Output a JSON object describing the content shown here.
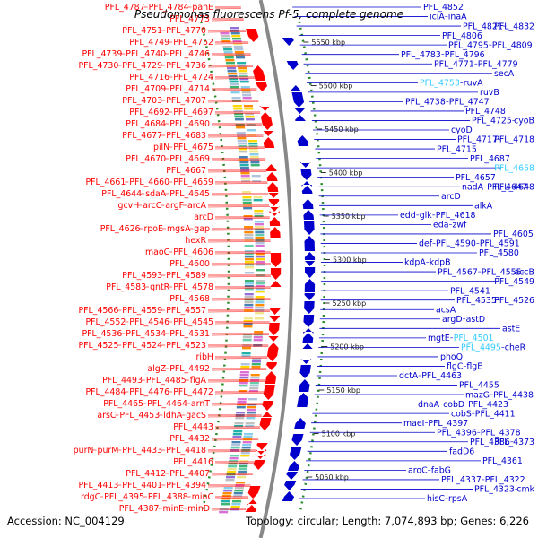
{
  "title": "Pseudomonas fluorescens Pf-5, complete genome",
  "footer": {
    "accession": "Accession: NC_004129",
    "summary": "Topology: circular; Length: 7,074,893 bp; Genes: 6,226"
  },
  "colors": {
    "forward": "#ff0000",
    "reverse": "#0000cc",
    "highlight": "#33ccff",
    "backbone": "#888888",
    "gc": "#2a8a2a"
  },
  "kbp_ticks": [
    "5550 kbp",
    "5500 kbp",
    "5450 kbp",
    "5400 kbp",
    "5350 kbp",
    "5300 kbp",
    "5250 kbp",
    "5200 kbp",
    "5150 kbp",
    "5100 kbp",
    "5050 kbp"
  ],
  "left_labels": [
    [
      "PFL_4787",
      "PFL_4784",
      "panE"
    ],
    [
      "PFL_4773"
    ],
    [
      "PFL_4751",
      "PFL_4770"
    ],
    [
      "PFL_4749",
      "PFL_4752"
    ],
    [
      "PFL_4739",
      "PFL_4740",
      "PFL_4746"
    ],
    [
      "PFL_4730",
      "PFL_4729",
      "PFL_4736"
    ],
    [
      "PFL_4716",
      "PFL_4724"
    ],
    [
      "PFL_4709",
      "PFL_4714"
    ],
    [
      "PFL_4703",
      "PFL_4707"
    ],
    [
      "PFL_4692",
      "PFL_4697"
    ],
    [
      "PFL_4684",
      "PFL_4690"
    ],
    [
      "PFL_4677",
      "PFL_4683"
    ],
    [
      "pilN",
      "PFL_4675"
    ],
    [
      "PFL_4670",
      "PFL_4669"
    ],
    [
      "PFL_4667"
    ],
    [
      "PFL_4661",
      "PFL_4660",
      "PFL_4659"
    ],
    [
      "PFL_4644",
      "sdaA",
      "PFL_4645"
    ],
    [
      "gcvH",
      "arcC",
      "argF",
      "arcA"
    ],
    [
      "arcD"
    ],
    [
      "PFL_4626",
      "rpoE",
      "mgsA",
      "gap"
    ],
    [
      "hexR"
    ],
    [
      "maoC",
      "PFL_4606"
    ],
    [
      "PFL_4600"
    ],
    [
      "PFL_4593",
      "PFL_4589"
    ],
    [
      "PFL_4583",
      "gntR",
      "PFL_4578"
    ],
    [
      "PFL_4568"
    ],
    [
      "PFL_4566",
      "PFL_4559",
      "PFL_4557"
    ],
    [
      "PFL_4552",
      "PFL_4546",
      "PFL_4545"
    ],
    [
      "PFL_4536",
      "PFL_4534",
      "PFL_4531"
    ],
    [
      "PFL_4525",
      "PFL_4524",
      "PFL_4523"
    ],
    [
      "ribH"
    ],
    [
      "algZ",
      "PFL_4492"
    ],
    [
      "PFL_4493",
      "PFL_4485",
      "flgA"
    ],
    [
      "PFL_4484",
      "PFL_4476",
      "PFL_4472"
    ],
    [
      "PFL_4465",
      "PFL_4464",
      "arnT"
    ],
    [
      "arsC",
      "PFL_4453",
      "ldhA",
      "gacS"
    ],
    [
      "PFL_4443"
    ],
    [
      "PFL_4432"
    ],
    [
      "purN",
      "purM",
      "PFL_4433",
      "PFL_4418"
    ],
    [
      "PFL_4416"
    ],
    [
      "PFL_4412",
      "PFL_4407"
    ],
    [
      "PFL_4413",
      "PFL_4401",
      "PFL_4394"
    ],
    [
      "rdgC",
      "PFL_4395",
      "PFL_4388",
      "minC"
    ],
    [
      "PFL_4387",
      "minE",
      "minD"
    ]
  ],
  "right_labels": [
    [
      "PFL_4852"
    ],
    [
      "iciA",
      "inaA"
    ],
    [
      "PFL_4821",
      "PFL_4832"
    ],
    [
      "PFL_4806"
    ],
    [
      "PFL_4795",
      "PFL_4809"
    ],
    [
      "PFL_4783",
      "PFL_4796"
    ],
    [
      "PFL_4771",
      "PFL_4779"
    ],
    [
      "secA"
    ],
    [
      "PFL_4753",
      "ruvA"
    ],
    [
      "ruvB"
    ],
    [
      "PFL_4738",
      "PFL_4747"
    ],
    [
      "PFL_4748"
    ],
    [
      "PFL_4725",
      "cyoB"
    ],
    [
      "cyoD"
    ],
    [
      "PFL_4717",
      "PFL_4718"
    ],
    [
      "PFL_4715"
    ],
    [
      "PFL_4687"
    ],
    [
      "PFL_4658"
    ],
    [
      "PFL_4657"
    ],
    [
      "nadA",
      "PFL_4647",
      "PFL_4648"
    ],
    [
      "arcD"
    ],
    [
      "alkA"
    ],
    [
      "edd",
      "glk",
      "PFL_4618"
    ],
    [
      "eda",
      "zwf"
    ],
    [
      "PFL_4605"
    ],
    [
      "def",
      "PFL_4590",
      "PFL_4591"
    ],
    [
      "PFL_4580"
    ],
    [
      "kdpA",
      "kdpB"
    ],
    [
      "PFL_4567",
      "PFL_4555",
      "accB"
    ],
    [
      "PFL_4549"
    ],
    [
      "PFL_4541"
    ],
    [
      "PFL_4535",
      "PFL_4526"
    ],
    [
      "acsA"
    ],
    [
      "argD",
      "astD"
    ],
    [
      "astE"
    ],
    [
      "mgtE",
      "PFL_4501"
    ],
    [
      "PFL_4495",
      "cheR"
    ],
    [
      "phoQ"
    ],
    [
      "flgC",
      "flgE"
    ],
    [
      "dctA",
      "PFL_4463"
    ],
    [
      "PFL_4455"
    ],
    [
      "mazG",
      "PFL_4438"
    ],
    [
      "dnaA",
      "cobD",
      "PFL_4423"
    ],
    [
      "cobS",
      "PFL_4411"
    ],
    [
      "maeI",
      "PFL_4397"
    ],
    [
      "PFL_4396",
      "PFL_4378"
    ],
    [
      "PFL_4386",
      "PFL_4373"
    ],
    [
      "fadD6"
    ],
    [
      "PFL_4361"
    ],
    [
      "aroC",
      "fabG"
    ],
    [
      "PFL_4337",
      "PFL_4322"
    ],
    [
      "PFL_4323",
      "cmk"
    ],
    [
      "hisC",
      "rpsA"
    ]
  ]
}
